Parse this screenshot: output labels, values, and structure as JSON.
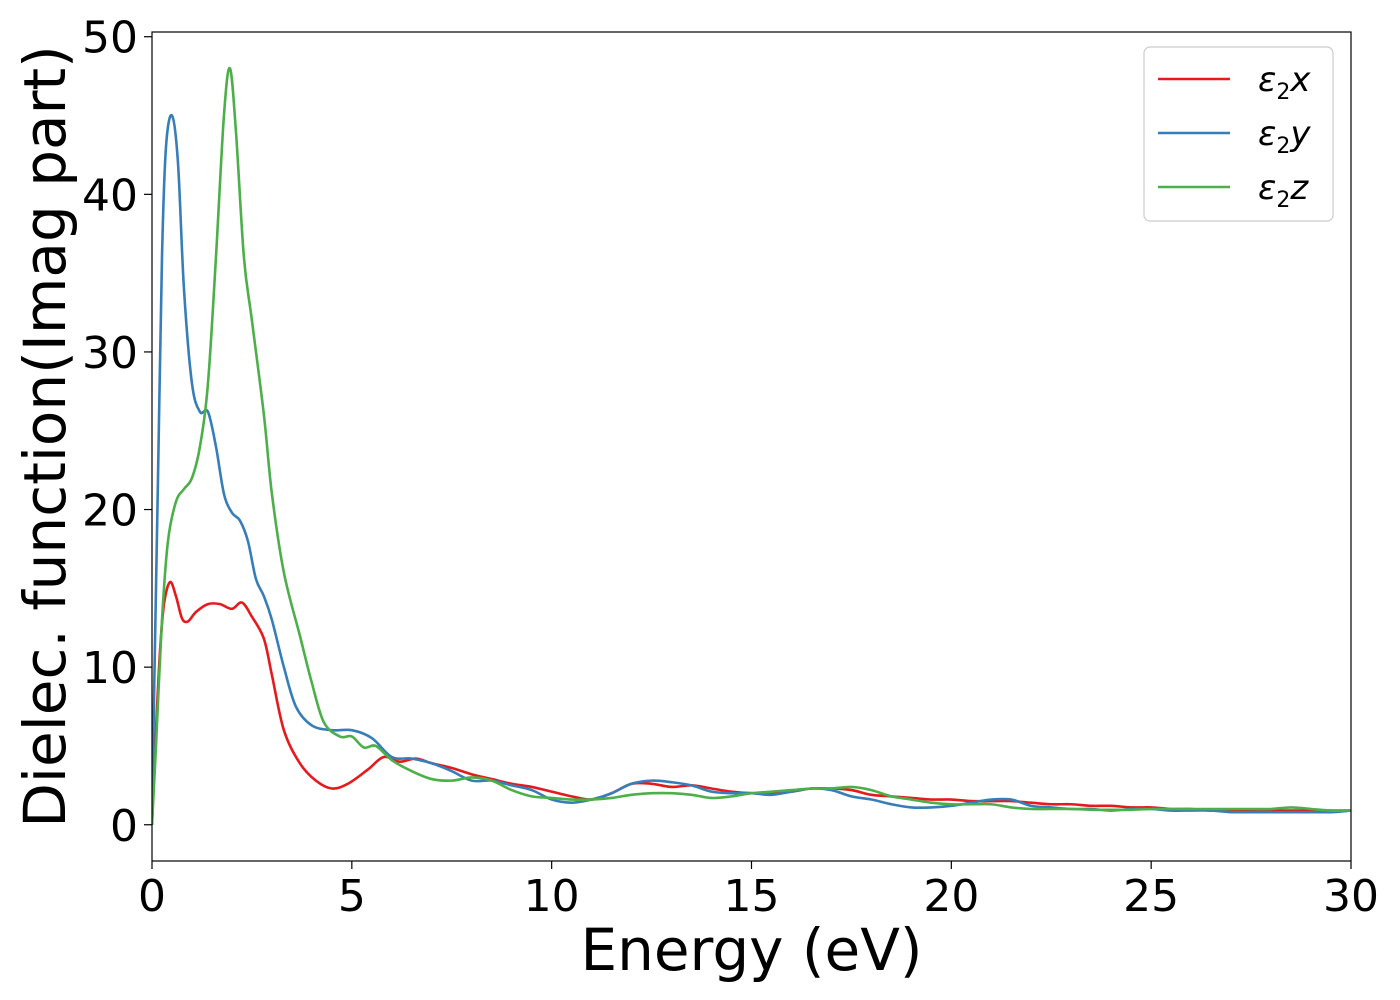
{
  "chart_data": {
    "type": "line",
    "xlabel": "Energy (eV)",
    "ylabel": "Dielec. function(Imag part)",
    "xlim": [
      0,
      30
    ],
    "ylim": [
      -2.3,
      50.3
    ],
    "xticks": [
      0,
      5,
      10,
      15,
      20,
      25,
      30
    ],
    "yticks": [
      0,
      10,
      20,
      30,
      40,
      50
    ],
    "grid": false,
    "legend_position": "top-right",
    "series": [
      {
        "name": "ε₂x",
        "legend": {
          "base": "ε",
          "sub": "2",
          "var": "x"
        },
        "color": "#e41a1c",
        "points": [
          [
            0,
            0
          ],
          [
            0.1,
            6
          ],
          [
            0.2,
            11
          ],
          [
            0.3,
            14
          ],
          [
            0.45,
            15.4
          ],
          [
            0.6,
            14.5
          ],
          [
            0.75,
            13.1
          ],
          [
            0.9,
            12.9
          ],
          [
            1.1,
            13.5
          ],
          [
            1.4,
            14
          ],
          [
            1.7,
            14
          ],
          [
            2.0,
            13.7
          ],
          [
            2.25,
            14.1
          ],
          [
            2.5,
            13.2
          ],
          [
            2.8,
            11.8
          ],
          [
            3.0,
            9.5
          ],
          [
            3.3,
            6.0
          ],
          [
            3.7,
            3.9
          ],
          [
            4.1,
            2.8
          ],
          [
            4.5,
            2.3
          ],
          [
            4.9,
            2.6
          ],
          [
            5.4,
            3.5
          ],
          [
            5.8,
            4.3
          ],
          [
            6.2,
            4.0
          ],
          [
            6.6,
            4.2
          ],
          [
            7.0,
            3.9
          ],
          [
            7.5,
            3.6
          ],
          [
            8.0,
            3.2
          ],
          [
            8.5,
            2.9
          ],
          [
            9.0,
            2.6
          ],
          [
            9.5,
            2.4
          ],
          [
            10.0,
            2.1
          ],
          [
            10.5,
            1.8
          ],
          [
            11.0,
            1.6
          ],
          [
            11.5,
            2.0
          ],
          [
            12.0,
            2.6
          ],
          [
            12.5,
            2.6
          ],
          [
            13.0,
            2.4
          ],
          [
            13.5,
            2.5
          ],
          [
            14.0,
            2.3
          ],
          [
            14.5,
            2.1
          ],
          [
            15.0,
            2.0
          ],
          [
            15.5,
            2.0
          ],
          [
            16.0,
            2.1
          ],
          [
            16.5,
            2.3
          ],
          [
            17.0,
            2.3
          ],
          [
            17.5,
            2.2
          ],
          [
            18.0,
            1.9
          ],
          [
            18.5,
            1.8
          ],
          [
            19.0,
            1.7
          ],
          [
            19.5,
            1.6
          ],
          [
            20.0,
            1.6
          ],
          [
            20.5,
            1.5
          ],
          [
            21.0,
            1.5
          ],
          [
            21.5,
            1.5
          ],
          [
            22.0,
            1.4
          ],
          [
            22.5,
            1.3
          ],
          [
            23.0,
            1.3
          ],
          [
            23.5,
            1.2
          ],
          [
            24.0,
            1.2
          ],
          [
            24.5,
            1.1
          ],
          [
            25.0,
            1.1
          ],
          [
            25.5,
            1.0
          ],
          [
            26.0,
            1.0
          ],
          [
            26.5,
            0.9
          ],
          [
            27.0,
            0.9
          ],
          [
            27.5,
            0.9
          ],
          [
            28.0,
            0.9
          ],
          [
            28.5,
            0.9
          ],
          [
            29.0,
            0.9
          ],
          [
            29.5,
            0.9
          ],
          [
            30.0,
            0.9
          ]
        ]
      },
      {
        "name": "ε₂y",
        "legend": {
          "base": "ε",
          "sub": "2",
          "var": "y"
        },
        "color": "#377eb8",
        "points": [
          [
            0,
            0
          ],
          [
            0.05,
            8
          ],
          [
            0.15,
            22
          ],
          [
            0.25,
            36
          ],
          [
            0.35,
            43
          ],
          [
            0.5,
            45
          ],
          [
            0.65,
            42
          ],
          [
            0.8,
            34
          ],
          [
            1.0,
            28
          ],
          [
            1.2,
            26.2
          ],
          [
            1.4,
            26.2
          ],
          [
            1.6,
            24
          ],
          [
            1.8,
            21
          ],
          [
            2.0,
            19.8
          ],
          [
            2.2,
            19.3
          ],
          [
            2.4,
            18
          ],
          [
            2.6,
            15.6
          ],
          [
            2.8,
            14.5
          ],
          [
            3.0,
            13
          ],
          [
            3.3,
            10
          ],
          [
            3.6,
            7.5
          ],
          [
            4.0,
            6.3
          ],
          [
            4.5,
            6.0
          ],
          [
            5.0,
            6.0
          ],
          [
            5.5,
            5.5
          ],
          [
            6.0,
            4.3
          ],
          [
            6.5,
            4.2
          ],
          [
            7.0,
            3.9
          ],
          [
            7.5,
            3.4
          ],
          [
            8.0,
            2.8
          ],
          [
            8.5,
            2.8
          ],
          [
            9.0,
            2.5
          ],
          [
            9.5,
            2.2
          ],
          [
            10.0,
            1.6
          ],
          [
            10.5,
            1.4
          ],
          [
            11.0,
            1.6
          ],
          [
            11.5,
            2.0
          ],
          [
            12.0,
            2.6
          ],
          [
            12.5,
            2.8
          ],
          [
            13.0,
            2.7
          ],
          [
            13.5,
            2.5
          ],
          [
            14.0,
            2.1
          ],
          [
            14.5,
            2.0
          ],
          [
            15.0,
            2.0
          ],
          [
            15.5,
            1.9
          ],
          [
            16.0,
            2.1
          ],
          [
            16.5,
            2.3
          ],
          [
            17.0,
            2.2
          ],
          [
            17.5,
            1.8
          ],
          [
            18.0,
            1.6
          ],
          [
            18.5,
            1.3
          ],
          [
            19.0,
            1.1
          ],
          [
            19.5,
            1.1
          ],
          [
            20.0,
            1.2
          ],
          [
            20.5,
            1.4
          ],
          [
            21.0,
            1.6
          ],
          [
            21.5,
            1.6
          ],
          [
            22.0,
            1.2
          ],
          [
            22.5,
            1.1
          ],
          [
            23.0,
            1.0
          ],
          [
            23.5,
            1.0
          ],
          [
            24.0,
            0.9
          ],
          [
            24.5,
            1.0
          ],
          [
            25.0,
            1.0
          ],
          [
            25.5,
            0.9
          ],
          [
            26.0,
            0.9
          ],
          [
            26.5,
            0.9
          ],
          [
            27.0,
            0.8
          ],
          [
            27.5,
            0.8
          ],
          [
            28.0,
            0.8
          ],
          [
            28.5,
            0.8
          ],
          [
            29.0,
            0.8
          ],
          [
            29.5,
            0.8
          ],
          [
            30.0,
            0.9
          ]
        ]
      },
      {
        "name": "ε₂z",
        "legend": {
          "base": "ε",
          "sub": "2",
          "var": "z"
        },
        "color": "#4daf4a",
        "points": [
          [
            0,
            0
          ],
          [
            0.1,
            5
          ],
          [
            0.25,
            13
          ],
          [
            0.4,
            18
          ],
          [
            0.6,
            20.5
          ],
          [
            0.8,
            21.3
          ],
          [
            1.0,
            22
          ],
          [
            1.2,
            24
          ],
          [
            1.4,
            28
          ],
          [
            1.6,
            36
          ],
          [
            1.8,
            45
          ],
          [
            1.95,
            48
          ],
          [
            2.1,
            44
          ],
          [
            2.3,
            36
          ],
          [
            2.5,
            32
          ],
          [
            2.8,
            26
          ],
          [
            3.0,
            21
          ],
          [
            3.3,
            16
          ],
          [
            3.7,
            12
          ],
          [
            4.0,
            9
          ],
          [
            4.3,
            6.5
          ],
          [
            4.7,
            5.6
          ],
          [
            5.0,
            5.6
          ],
          [
            5.3,
            4.9
          ],
          [
            5.6,
            5.0
          ],
          [
            6.0,
            4.1
          ],
          [
            6.5,
            3.4
          ],
          [
            7.0,
            2.9
          ],
          [
            7.5,
            2.8
          ],
          [
            8.0,
            3.0
          ],
          [
            8.5,
            2.8
          ],
          [
            9.0,
            2.2
          ],
          [
            9.5,
            1.8
          ],
          [
            10.0,
            1.7
          ],
          [
            10.5,
            1.6
          ],
          [
            11.0,
            1.6
          ],
          [
            11.5,
            1.7
          ],
          [
            12.0,
            1.9
          ],
          [
            12.5,
            2.0
          ],
          [
            13.0,
            2.0
          ],
          [
            13.5,
            1.9
          ],
          [
            14.0,
            1.7
          ],
          [
            14.5,
            1.8
          ],
          [
            15.0,
            2.0
          ],
          [
            15.5,
            2.1
          ],
          [
            16.0,
            2.2
          ],
          [
            16.5,
            2.3
          ],
          [
            17.0,
            2.3
          ],
          [
            17.5,
            2.4
          ],
          [
            18.0,
            2.2
          ],
          [
            18.5,
            1.8
          ],
          [
            19.0,
            1.6
          ],
          [
            19.5,
            1.4
          ],
          [
            20.0,
            1.3
          ],
          [
            20.5,
            1.3
          ],
          [
            21.0,
            1.3
          ],
          [
            21.5,
            1.1
          ],
          [
            22.0,
            1.0
          ],
          [
            22.5,
            1.0
          ],
          [
            23.0,
            1.0
          ],
          [
            23.5,
            0.95
          ],
          [
            24.0,
            0.95
          ],
          [
            24.5,
            0.95
          ],
          [
            25.0,
            1.0
          ],
          [
            25.5,
            1.0
          ],
          [
            26.0,
            1.0
          ],
          [
            26.5,
            1.0
          ],
          [
            27.0,
            1.0
          ],
          [
            27.5,
            1.0
          ],
          [
            28.0,
            1.0
          ],
          [
            28.5,
            1.1
          ],
          [
            29.0,
            1.0
          ],
          [
            29.5,
            0.9
          ],
          [
            30.0,
            0.9
          ]
        ]
      }
    ]
  }
}
